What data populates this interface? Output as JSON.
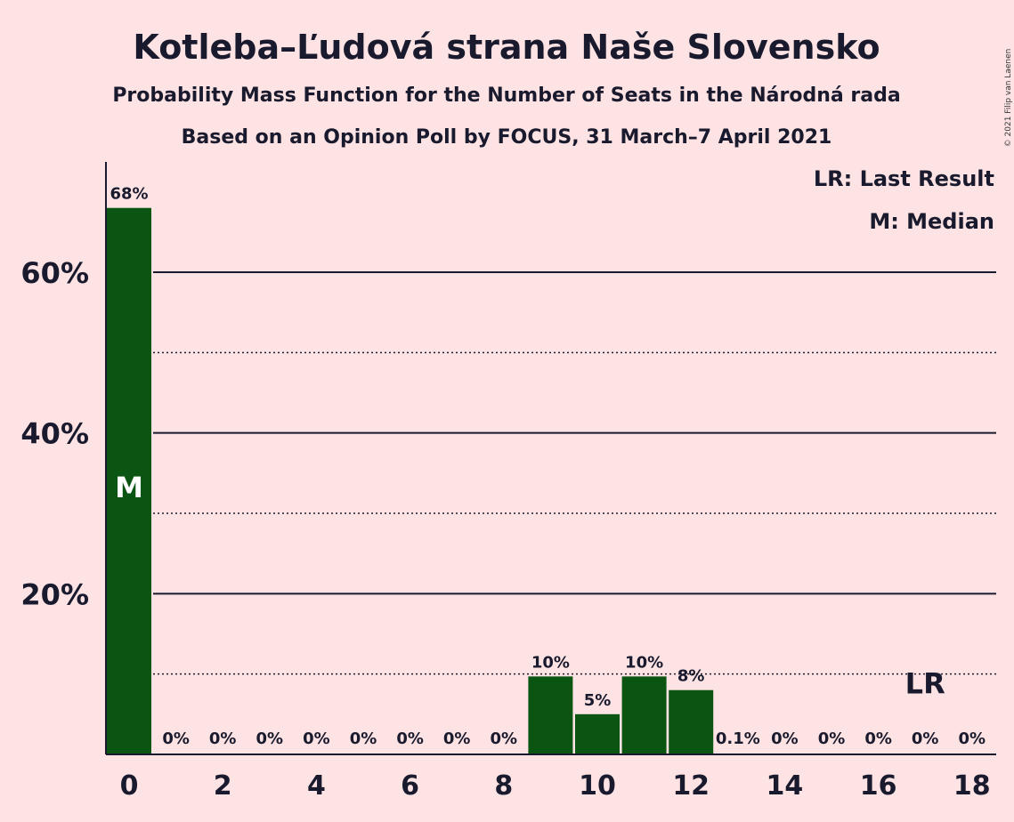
{
  "title": "Kotleba–Ľudová strana Naše Slovensko",
  "subtitle1": "Probability Mass Function for the Number of Seats in the Národná rada",
  "subtitle2": "Based on an Opinion Poll by FOCUS, 31 March–7 April 2021",
  "copyright": "© 2021 Filip van Laenen",
  "legend": {
    "last_result": "LR: Last Result",
    "median": "M: Median"
  },
  "colors": {
    "background": "#fde3e3",
    "bar": "#0b5513",
    "text": "#1a1a2e"
  },
  "chart_data": {
    "type": "bar",
    "categories": [
      0,
      1,
      2,
      3,
      4,
      5,
      6,
      7,
      8,
      9,
      10,
      11,
      12,
      13,
      14,
      15,
      16,
      17,
      18
    ],
    "values": [
      68,
      0,
      0,
      0,
      0,
      0,
      0,
      0,
      0,
      9.7,
      5,
      9.7,
      8,
      0.1,
      0,
      0,
      0,
      0,
      0
    ],
    "labels": [
      "68%",
      "0%",
      "0%",
      "0%",
      "0%",
      "0%",
      "0%",
      "0%",
      "0%",
      "10%",
      "5%",
      "10%",
      "8%",
      "0.1%",
      "0%",
      "0%",
      "0%",
      "0%",
      "0%"
    ],
    "x_tick_labels": [
      "0",
      "2",
      "4",
      "6",
      "8",
      "10",
      "12",
      "14",
      "16",
      "18"
    ],
    "y_tick_labels": [
      "20%",
      "40%",
      "60%"
    ],
    "y_solid_gridlines": [
      20,
      40,
      60
    ],
    "y_dotted_gridlines": [
      10,
      30,
      50
    ],
    "ylim": [
      0,
      74
    ],
    "xlim": [
      -0.5,
      18.5
    ],
    "median_seat": 0,
    "median_label": "M",
    "last_result_seat": 17,
    "last_result_label": "LR",
    "last_result_y": 10
  }
}
